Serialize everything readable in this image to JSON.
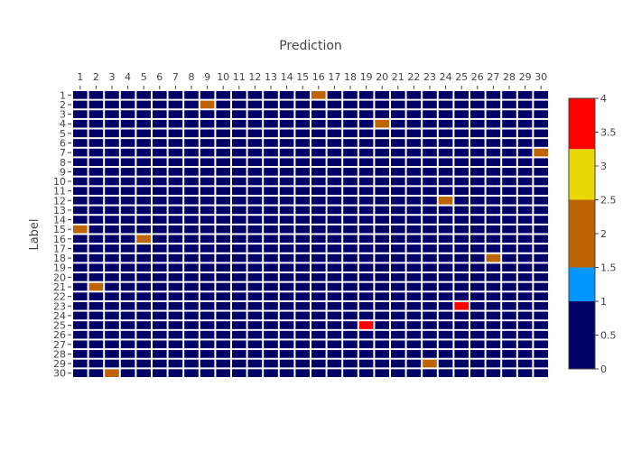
{
  "chart_data": {
    "type": "heatmap",
    "title": "Prediction",
    "xlabel": "",
    "ylabel": "Label",
    "x": [
      1,
      2,
      3,
      4,
      5,
      6,
      7,
      8,
      9,
      10,
      11,
      12,
      13,
      14,
      15,
      16,
      17,
      18,
      19,
      20,
      21,
      22,
      23,
      24,
      25,
      26,
      27,
      28,
      29,
      30
    ],
    "y": [
      1,
      2,
      3,
      4,
      5,
      6,
      7,
      8,
      9,
      10,
      11,
      12,
      13,
      14,
      15,
      16,
      17,
      18,
      19,
      20,
      21,
      22,
      23,
      24,
      25,
      26,
      27,
      28,
      29,
      30
    ],
    "cells": [
      {
        "label": 1,
        "prediction": 16,
        "value": 2
      },
      {
        "label": 2,
        "prediction": 9,
        "value": 2
      },
      {
        "label": 4,
        "prediction": 20,
        "value": 2
      },
      {
        "label": 7,
        "prediction": 30,
        "value": 2
      },
      {
        "label": 12,
        "prediction": 24,
        "value": 2
      },
      {
        "label": 15,
        "prediction": 1,
        "value": 2
      },
      {
        "label": 16,
        "prediction": 5,
        "value": 2
      },
      {
        "label": 18,
        "prediction": 27,
        "value": 2
      },
      {
        "label": 21,
        "prediction": 2,
        "value": 2
      },
      {
        "label": 23,
        "prediction": 25,
        "value": 4
      },
      {
        "label": 25,
        "prediction": 19,
        "value": 4
      },
      {
        "label": 29,
        "prediction": 23,
        "value": 2
      },
      {
        "label": 30,
        "prediction": 3,
        "value": 2
      }
    ],
    "default_value": 0,
    "x_axis_position": "top",
    "y_axis_reversed": true,
    "grid": false,
    "colorbar": {
      "range": [
        0,
        4
      ],
      "ticks": [
        0,
        0.5,
        1,
        1.5,
        2,
        2.5,
        3,
        3.5,
        4
      ],
      "tick_labels": [
        "0",
        "0.5",
        "1",
        "1.5",
        "2",
        "2.5",
        "3",
        "3.5",
        "4"
      ],
      "bands": [
        {
          "from": 0,
          "to": 1,
          "color": "#000066"
        },
        {
          "from": 1,
          "to": 1.5,
          "color": "#0096ff"
        },
        {
          "from": 1.5,
          "to": 2.5,
          "color": "#bf6405"
        },
        {
          "from": 2.5,
          "to": 3.25,
          "color": "#e8d805"
        },
        {
          "from": 3.25,
          "to": 4,
          "color": "#ff0000"
        }
      ]
    }
  }
}
